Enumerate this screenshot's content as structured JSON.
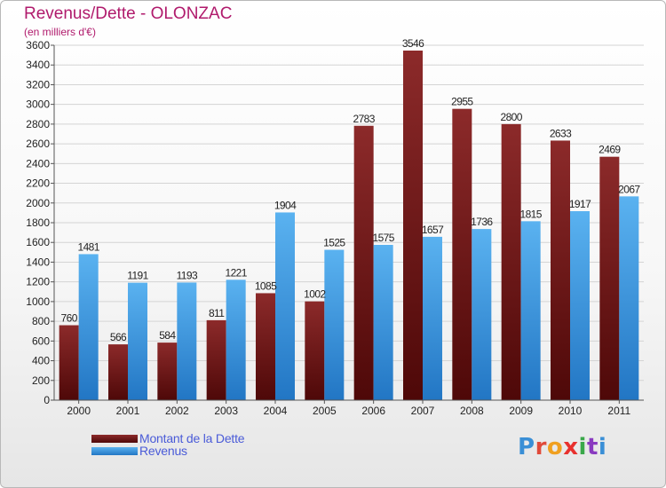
{
  "title": "Revenus/Dette - OLONZAC",
  "subtitle": "(en milliers d'€)",
  "logo": {
    "text": "Proxiti",
    "letters": [
      {
        "ch": "P",
        "color": "#3a8fd6"
      },
      {
        "ch": "r",
        "color": "#e04a3a"
      },
      {
        "ch": "o",
        "color": "#f0a020"
      },
      {
        "ch": "x",
        "color": "#e8312e"
      },
      {
        "ch": "i",
        "color": "#3aa84a"
      },
      {
        "ch": "t",
        "color": "#8a3ac0"
      },
      {
        "ch": "i",
        "color": "#3a8fd6"
      }
    ]
  },
  "chart_data": {
    "type": "bar",
    "categories": [
      "2000",
      "2001",
      "2002",
      "2003",
      "2004",
      "2005",
      "2006",
      "2007",
      "2008",
      "2009",
      "2010",
      "2011"
    ],
    "series": [
      {
        "name": "Montant de la Dette",
        "color": "#7a1c1c",
        "values": [
          760,
          566,
          584,
          811,
          1085,
          1002,
          2783,
          3546,
          2955,
          2800,
          2633,
          2469
        ],
        "labels": [
          "760",
          "566",
          "584",
          "811",
          "1085",
          "1002",
          "2783",
          "3546",
          "2955",
          "2800",
          "2633",
          "2469"
        ]
      },
      {
        "name": "Revenus",
        "color": "#3c9be6",
        "values": [
          1481,
          1191,
          1193,
          1221,
          1904,
          1525,
          1575,
          1657,
          1736,
          1815,
          1917,
          2067
        ],
        "labels": [
          "1481",
          "1191",
          "1193",
          "1221",
          "1904",
          "1525",
          "1575",
          "1657",
          "1736",
          "1815",
          "1917",
          "2067"
        ]
      }
    ],
    "ylim": [
      0,
      3600
    ],
    "yticks": [
      "0",
      "200",
      "400",
      "600",
      "800",
      "1000",
      "1200",
      "1400",
      "1600",
      "1800",
      "2000",
      "2200",
      "2400",
      "2600",
      "2800",
      "3000",
      "3200",
      "3400",
      "3600"
    ],
    "grid": true,
    "legend_position": "bottom-left"
  }
}
